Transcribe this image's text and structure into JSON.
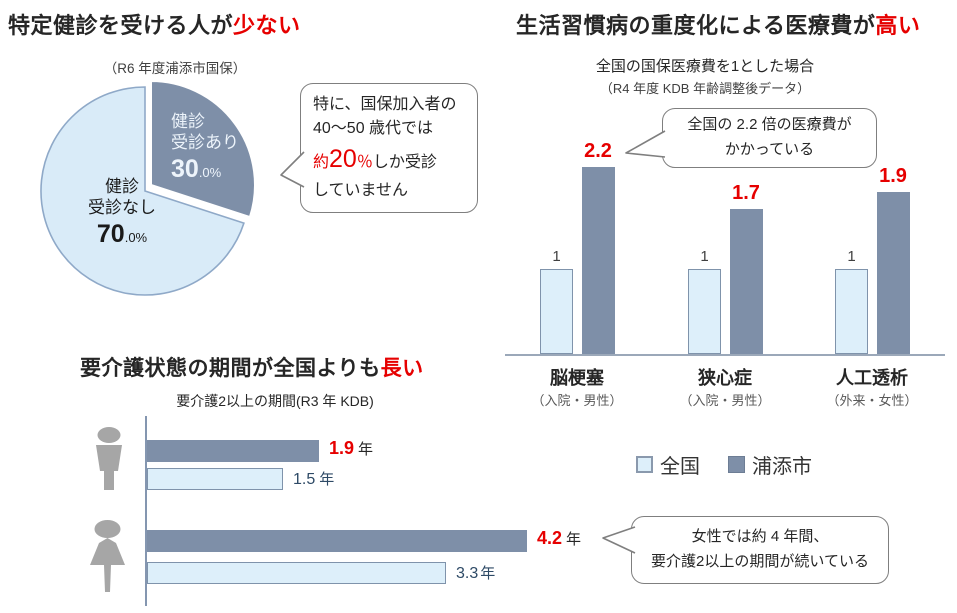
{
  "colors": {
    "accent_red": "#e60000",
    "series_dark": "#7e8fa8",
    "series_light": "#ddeffa",
    "light_border": "#7f93ab",
    "pie_light_stroke": "#8fa9c8",
    "axis": "#8496b0",
    "bubble_border": "#7f7f7f",
    "icon_gray": "#a6a6a6",
    "text_dark": "#262626",
    "text_sub": "#595959"
  },
  "section_checkup": {
    "title_black": "特定健診を受ける人が",
    "title_red": "少ない",
    "subtitle": "（R6 年度浦添市国保）",
    "bubble": {
      "line1": "特に、国保加入者の",
      "line2": "40～50 歳代では",
      "line3_red1": "約",
      "line3_big": "20",
      "line3_red2": "％",
      "line3_black": "しか受診",
      "line4": "していません"
    }
  },
  "section_medical": {
    "title_black": "生活習慣病の重度化による医療費が",
    "title_red": "高い",
    "subtitle": "全国の国保医療費を1とした場合",
    "note": "（R4 年度 KDB 年齢調整後データ）",
    "bubble": {
      "line1": "全国の 2.2 倍の医療費が",
      "line2": "かかっている"
    }
  },
  "section_care": {
    "title_black": "要介護状態の期間が全国よりも",
    "title_red": "長い",
    "subtitle": "要介護2以上の期間(R3 年 KDB)",
    "bubble": {
      "line1": "女性では約 4 年間、",
      "line2": "要介護2以上の期間が続いている"
    }
  },
  "chart_data": [
    {
      "id": "checkup-pie",
      "type": "pie",
      "title": "（R6 年度浦添市国保）",
      "slices": [
        {
          "label_line1": "健診",
          "label_line2": "受診あり",
          "value": 30.0,
          "num": "30",
          "frac": ".0%",
          "color": "#7e8fa8"
        },
        {
          "label_line1": "健診",
          "label_line2": "受診なし",
          "value": 70.0,
          "num": "70",
          "frac": ".0%",
          "color": "#d9ebf8"
        }
      ]
    },
    {
      "id": "medical-cost-ratio-bar",
      "type": "bar",
      "title": "全国の国保医療費を1とした場合",
      "subtitle": "（R4 年度 KDB 年齢調整後データ）",
      "categories": [
        "脳梗塞",
        "狭心症",
        "人工透析"
      ],
      "category_subs": [
        "（入院・男性）",
        "（入院・男性）",
        "（外来・女性）"
      ],
      "series": [
        {
          "name": "全国",
          "values": [
            1,
            1,
            1
          ],
          "color": "#ddeffa"
        },
        {
          "name": "浦添市",
          "values": [
            2.2,
            1.7,
            1.9
          ],
          "color": "#7e8fa8"
        }
      ],
      "ylim": [
        0,
        2.4
      ],
      "grid": false,
      "annotation": "全国の 2.2 倍の医療費が かかっている"
    },
    {
      "id": "care-duration-bar",
      "type": "bar-horizontal",
      "title": "要介護2以上の期間(R3 年 KDB)",
      "categories": [
        "男性",
        "女性"
      ],
      "series": [
        {
          "name": "浦添市",
          "values": [
            1.9,
            4.2
          ],
          "color": "#7e8fa8"
        },
        {
          "name": "全国",
          "values": [
            1.5,
            3.3
          ],
          "color": "#ddeffa"
        }
      ],
      "unit": "年",
      "xlim": [
        0,
        4.6
      ],
      "legend_position": "right",
      "annotation": "女性では約 4 年間、要介護2以上の期間が続いている"
    }
  ],
  "legend": {
    "item_light": "全国",
    "item_dark": "浦添市"
  }
}
